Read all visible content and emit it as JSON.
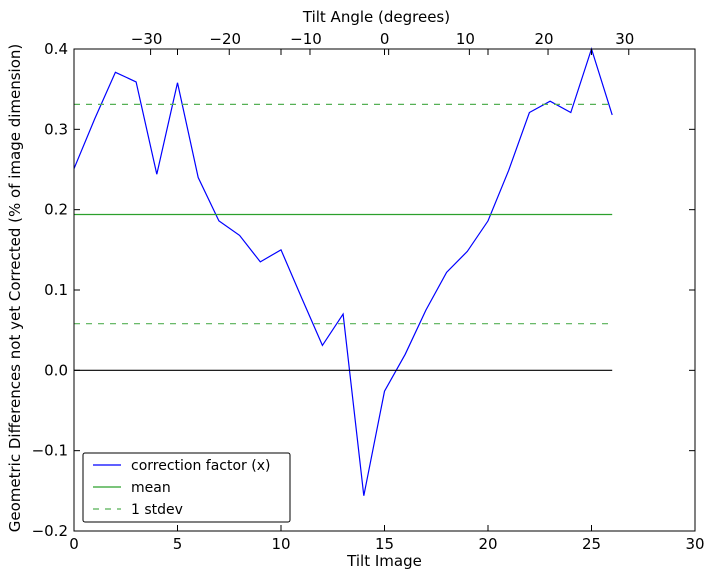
{
  "chart_data": {
    "type": "line",
    "title": "",
    "xlabel": "Tilt Image",
    "ylabel": "Geometric Differences not yet Corrected (% of image dimension)",
    "xlabel_top": "Tilt Angle (degrees)",
    "xlim": [
      0,
      30
    ],
    "ylim": [
      -0.2,
      0.4
    ],
    "x_ticks": [
      "0",
      "5",
      "10",
      "15",
      "20",
      "25",
      "30"
    ],
    "x_tick_values": [
      0,
      5,
      10,
      15,
      20,
      25,
      30
    ],
    "y_ticks": [
      "−0.2",
      "−0.1",
      "0.0",
      "0.1",
      "0.2",
      "0.3",
      "0.4"
    ],
    "y_tick_values": [
      -0.2,
      -0.1,
      0.0,
      0.1,
      0.2,
      0.3,
      0.4
    ],
    "top_ticks": [
      "−30",
      "−20",
      "−10",
      "0",
      "10",
      "20",
      "30"
    ],
    "top_tick_positions": [
      3.7,
      7.5,
      11.4,
      15.2,
      19.1,
      22.9,
      26.8
    ],
    "grid": false,
    "legend_position": "lower-left",
    "series": [
      {
        "name": "correction factor (x)",
        "color": "#0000ff",
        "style": "solid",
        "x": [
          0,
          1,
          2,
          3,
          4,
          5,
          6,
          7,
          8,
          9,
          10,
          11,
          12,
          13,
          14,
          15,
          16,
          17,
          18,
          19,
          20,
          21,
          22,
          23,
          24,
          25,
          26
        ],
        "y": [
          0.251,
          0.313,
          0.371,
          0.359,
          0.244,
          0.358,
          0.24,
          0.186,
          0.168,
          0.135,
          0.15,
          0.09,
          0.031,
          0.07,
          -0.156,
          -0.026,
          0.02,
          0.075,
          0.122,
          0.148,
          0.186,
          0.249,
          0.321,
          0.335,
          0.321,
          0.4,
          0.318
        ]
      },
      {
        "name": "mean",
        "color": "#008000",
        "style": "solid",
        "x": [
          0,
          26
        ],
        "y": [
          0.194,
          0.194
        ]
      },
      {
        "name": "1 stdev",
        "color": "#008000",
        "style": "dashed",
        "x": [
          0,
          26
        ],
        "y": [
          0.331,
          0.331
        ]
      },
      {
        "name": "",
        "color": "#008000",
        "style": "dashed",
        "x": [
          0,
          26
        ],
        "y": [
          0.058,
          0.058
        ]
      },
      {
        "name": "",
        "color": "#000000",
        "style": "solid",
        "x": [
          0,
          26
        ],
        "y": [
          0.0,
          0.0
        ]
      }
    ],
    "legend": [
      "correction factor (x)",
      "mean",
      "1 stdev"
    ]
  }
}
